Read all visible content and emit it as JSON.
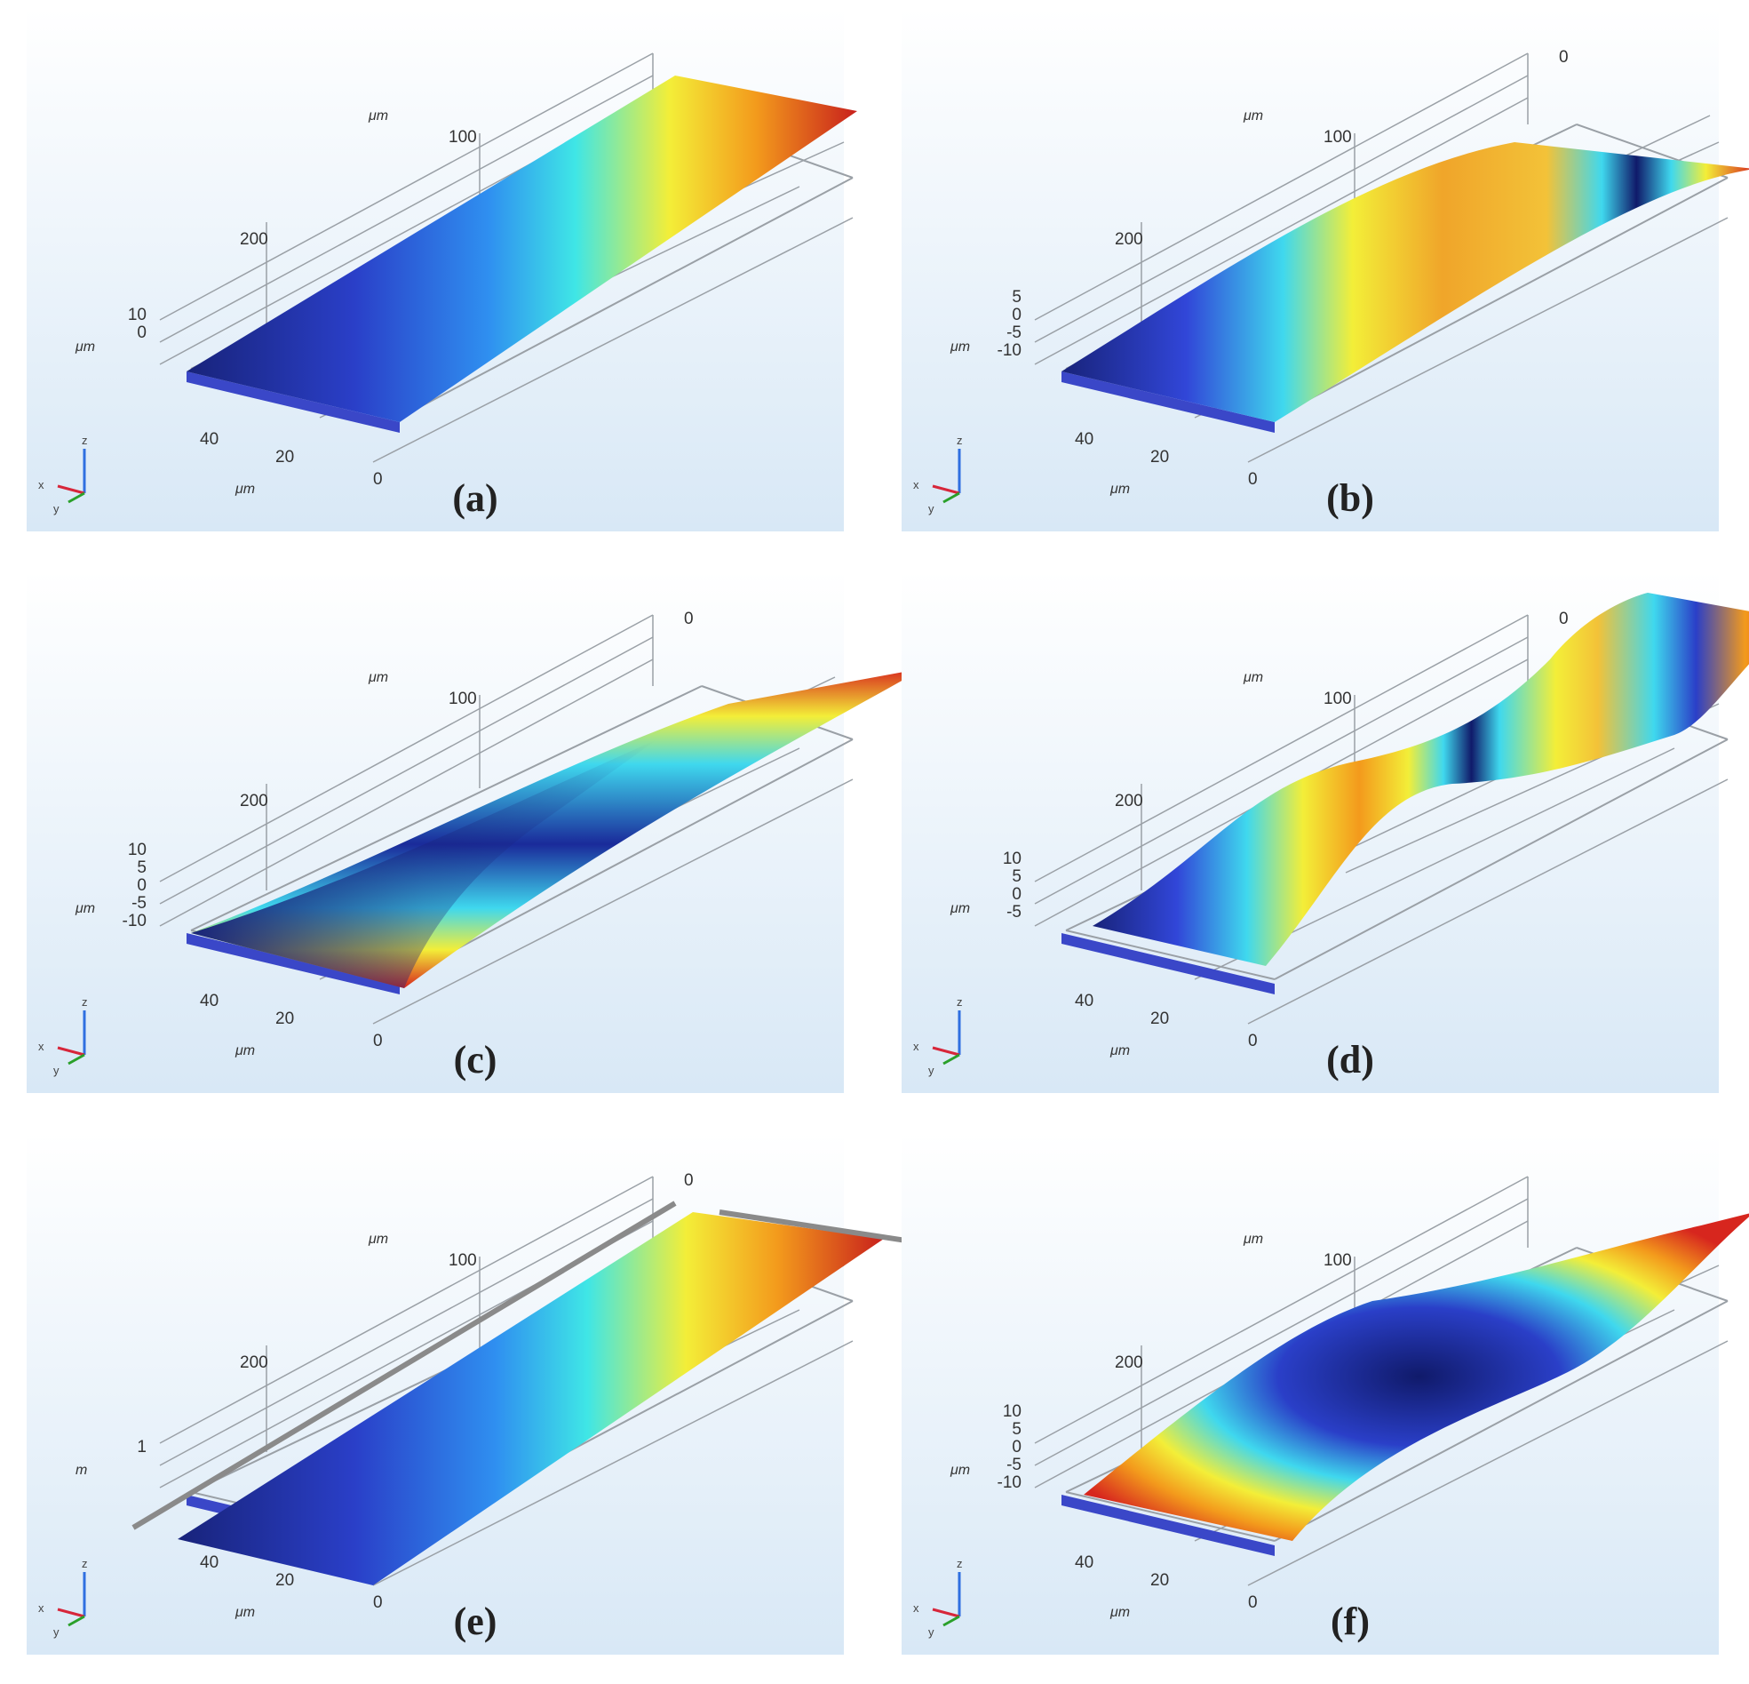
{
  "figure": {
    "panels": [
      {
        "id": "a",
        "label": "(a)",
        "mode": "first",
        "colormap": "linear",
        "units": {
          "length": "μm",
          "width": "μm",
          "height": "μm"
        },
        "length_ticks": [
          "100",
          "200"
        ],
        "width_ticks": [
          "40",
          "20",
          "0"
        ],
        "height_ticks": [
          "10",
          "0"
        ],
        "triad": {
          "x": "x",
          "y": "y",
          "z": "z"
        }
      },
      {
        "id": "b",
        "label": "(b)",
        "mode": "second",
        "colormap": "banded",
        "units": {
          "length": "μm",
          "width": "μm",
          "height": "μm"
        },
        "top_tick": "0",
        "length_ticks": [
          "100",
          "200"
        ],
        "width_ticks": [
          "40",
          "20",
          "0"
        ],
        "height_ticks": [
          "5",
          "0",
          "-5",
          "-10"
        ],
        "triad": {
          "x": "x",
          "y": "y",
          "z": "z"
        }
      },
      {
        "id": "c",
        "label": "(c)",
        "mode": "twist",
        "colormap": "twist",
        "units": {
          "length": "μm",
          "width": "μm",
          "height": "μm"
        },
        "top_tick": "0",
        "length_ticks": [
          "100",
          "200"
        ],
        "width_ticks": [
          "40",
          "20",
          "0"
        ],
        "height_ticks": [
          "10",
          "5",
          "0",
          "-5",
          "-10"
        ],
        "triad": {
          "x": "x",
          "y": "y",
          "z": "z"
        }
      },
      {
        "id": "d",
        "label": "(d)",
        "mode": "third",
        "colormap": "banded",
        "units": {
          "length": "μm",
          "width": "μm",
          "height": "μm"
        },
        "top_tick": "0",
        "length_ticks": [
          "100",
          "200"
        ],
        "width_ticks": [
          "40",
          "20",
          "0"
        ],
        "height_ticks": [
          "10",
          "5",
          "0",
          "-5"
        ],
        "triad": {
          "x": "x",
          "y": "y",
          "z": "z"
        }
      },
      {
        "id": "e",
        "label": "(e)",
        "mode": "lateral",
        "colormap": "linear",
        "units": {
          "length": "μm",
          "width": "μm",
          "height": "m"
        },
        "top_tick": "0",
        "length_ticks": [
          "100",
          "200"
        ],
        "width_ticks": [
          "40",
          "20",
          "0"
        ],
        "height_ticks": [
          "1"
        ],
        "triad": {
          "x": "x",
          "y": "y",
          "z": "z"
        }
      },
      {
        "id": "f",
        "label": "(f)",
        "mode": "twist-2",
        "colormap": "twist2",
        "units": {
          "length": "μm",
          "width": "μm",
          "height": "μm"
        },
        "length_ticks": [
          "100",
          "200"
        ],
        "width_ticks": [
          "40",
          "20",
          "0"
        ],
        "height_ticks": [
          "10",
          "5",
          "0",
          "-5",
          "-10"
        ],
        "triad": {
          "x": "x",
          "y": "y",
          "z": "z"
        }
      }
    ],
    "colors": {
      "dark_blue": "#18237a",
      "blue": "#2f5fe0",
      "cyan": "#3fe6e6",
      "yellow": "#f3ee38",
      "orange": "#f39a1c",
      "red": "#d7261e",
      "background_top": "#ffffff",
      "background_bottom": "#dcebf7"
    }
  }
}
